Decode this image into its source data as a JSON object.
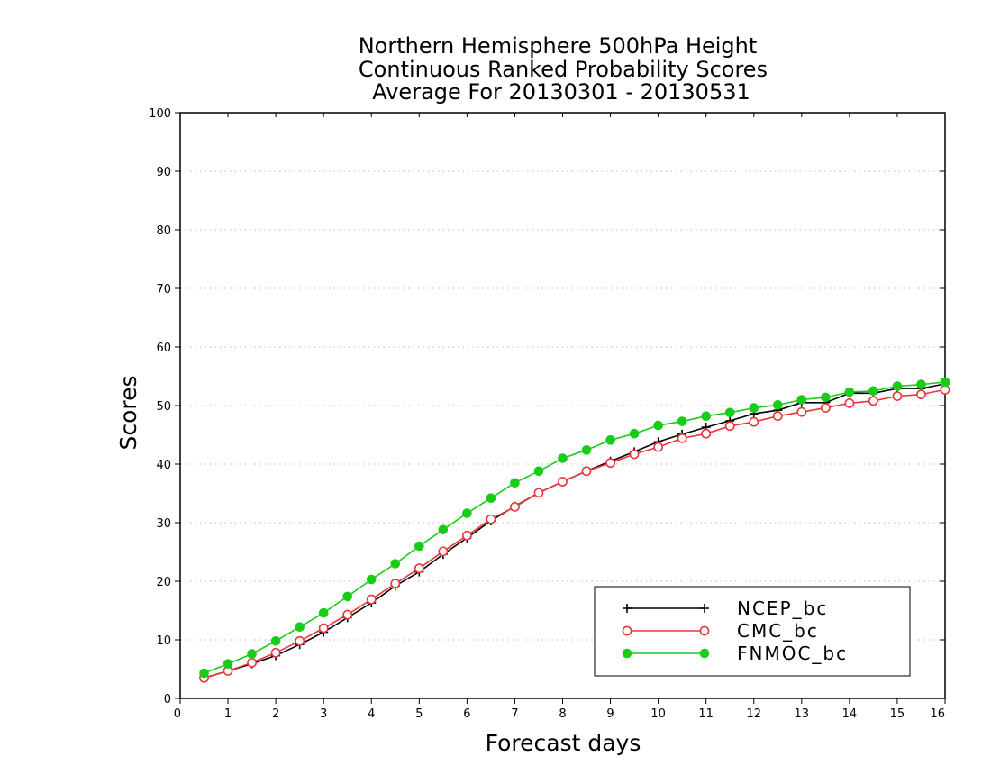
{
  "chart_data": {
    "type": "line",
    "title": [
      "Northern Hemisphere 500hPa Height",
      "Continuous Ranked Probability Scores",
      "Average For 20130301 - 20130531"
    ],
    "xlabel": "Forecast days",
    "ylabel": "Scores",
    "xlim": [
      0,
      16
    ],
    "ylim": [
      0,
      100
    ],
    "xticks": [
      0,
      1,
      2,
      3,
      4,
      5,
      6,
      7,
      8,
      9,
      10,
      11,
      12,
      13,
      14,
      15,
      16
    ],
    "yticks": [
      0,
      10,
      20,
      30,
      40,
      50,
      60,
      70,
      80,
      90,
      100
    ],
    "grid": "dotted horizontal",
    "legend_position": "bottom-right",
    "x": [
      0.5,
      1,
      1.5,
      2,
      2.5,
      3,
      3.5,
      4,
      4.5,
      5,
      5.5,
      6,
      6.5,
      7,
      7.5,
      8,
      8.5,
      9,
      9.5,
      10,
      10.5,
      11,
      11.5,
      12,
      12.5,
      13,
      13.5,
      14,
      14.5,
      15,
      15.5,
      16
    ],
    "series": [
      {
        "name": "NCEP_bc",
        "color": "#000000",
        "marker": "plus",
        "values": [
          3.5,
          4.7,
          5.9,
          7.3,
          9.2,
          11.3,
          13.8,
          16.3,
          19.2,
          21.6,
          24.6,
          27.4,
          30.3,
          32.8,
          35.1,
          37.0,
          38.8,
          40.5,
          42.1,
          43.8,
          45.1,
          46.3,
          47.4,
          48.6,
          49.2,
          50.5,
          50.5,
          52.1,
          52.1,
          52.9,
          52.9,
          53.7
        ]
      },
      {
        "name": "CMC_bc",
        "color": "#e8363d",
        "marker": "open-circle",
        "values": [
          3.5,
          4.7,
          6.1,
          7.8,
          9.8,
          12.0,
          14.3,
          16.9,
          19.6,
          22.2,
          25.1,
          27.8,
          30.6,
          32.7,
          35.1,
          37.0,
          38.8,
          40.2,
          41.7,
          42.9,
          44.4,
          45.2,
          46.5,
          47.2,
          48.2,
          48.9,
          49.6,
          50.4,
          50.8,
          51.6,
          51.9,
          52.7
        ]
      },
      {
        "name": "FNMOC_bc",
        "color": "#19cc19",
        "marker": "filled-circle",
        "values": [
          4.3,
          5.9,
          7.6,
          9.8,
          12.2,
          14.6,
          17.4,
          20.3,
          23.0,
          26.0,
          28.8,
          31.6,
          34.2,
          36.8,
          38.8,
          41.0,
          42.4,
          44.1,
          45.2,
          46.6,
          47.3,
          48.2,
          48.8,
          49.6,
          50.1,
          51.0,
          51.4,
          52.3,
          52.5,
          53.3,
          53.6,
          54.0
        ]
      }
    ]
  }
}
